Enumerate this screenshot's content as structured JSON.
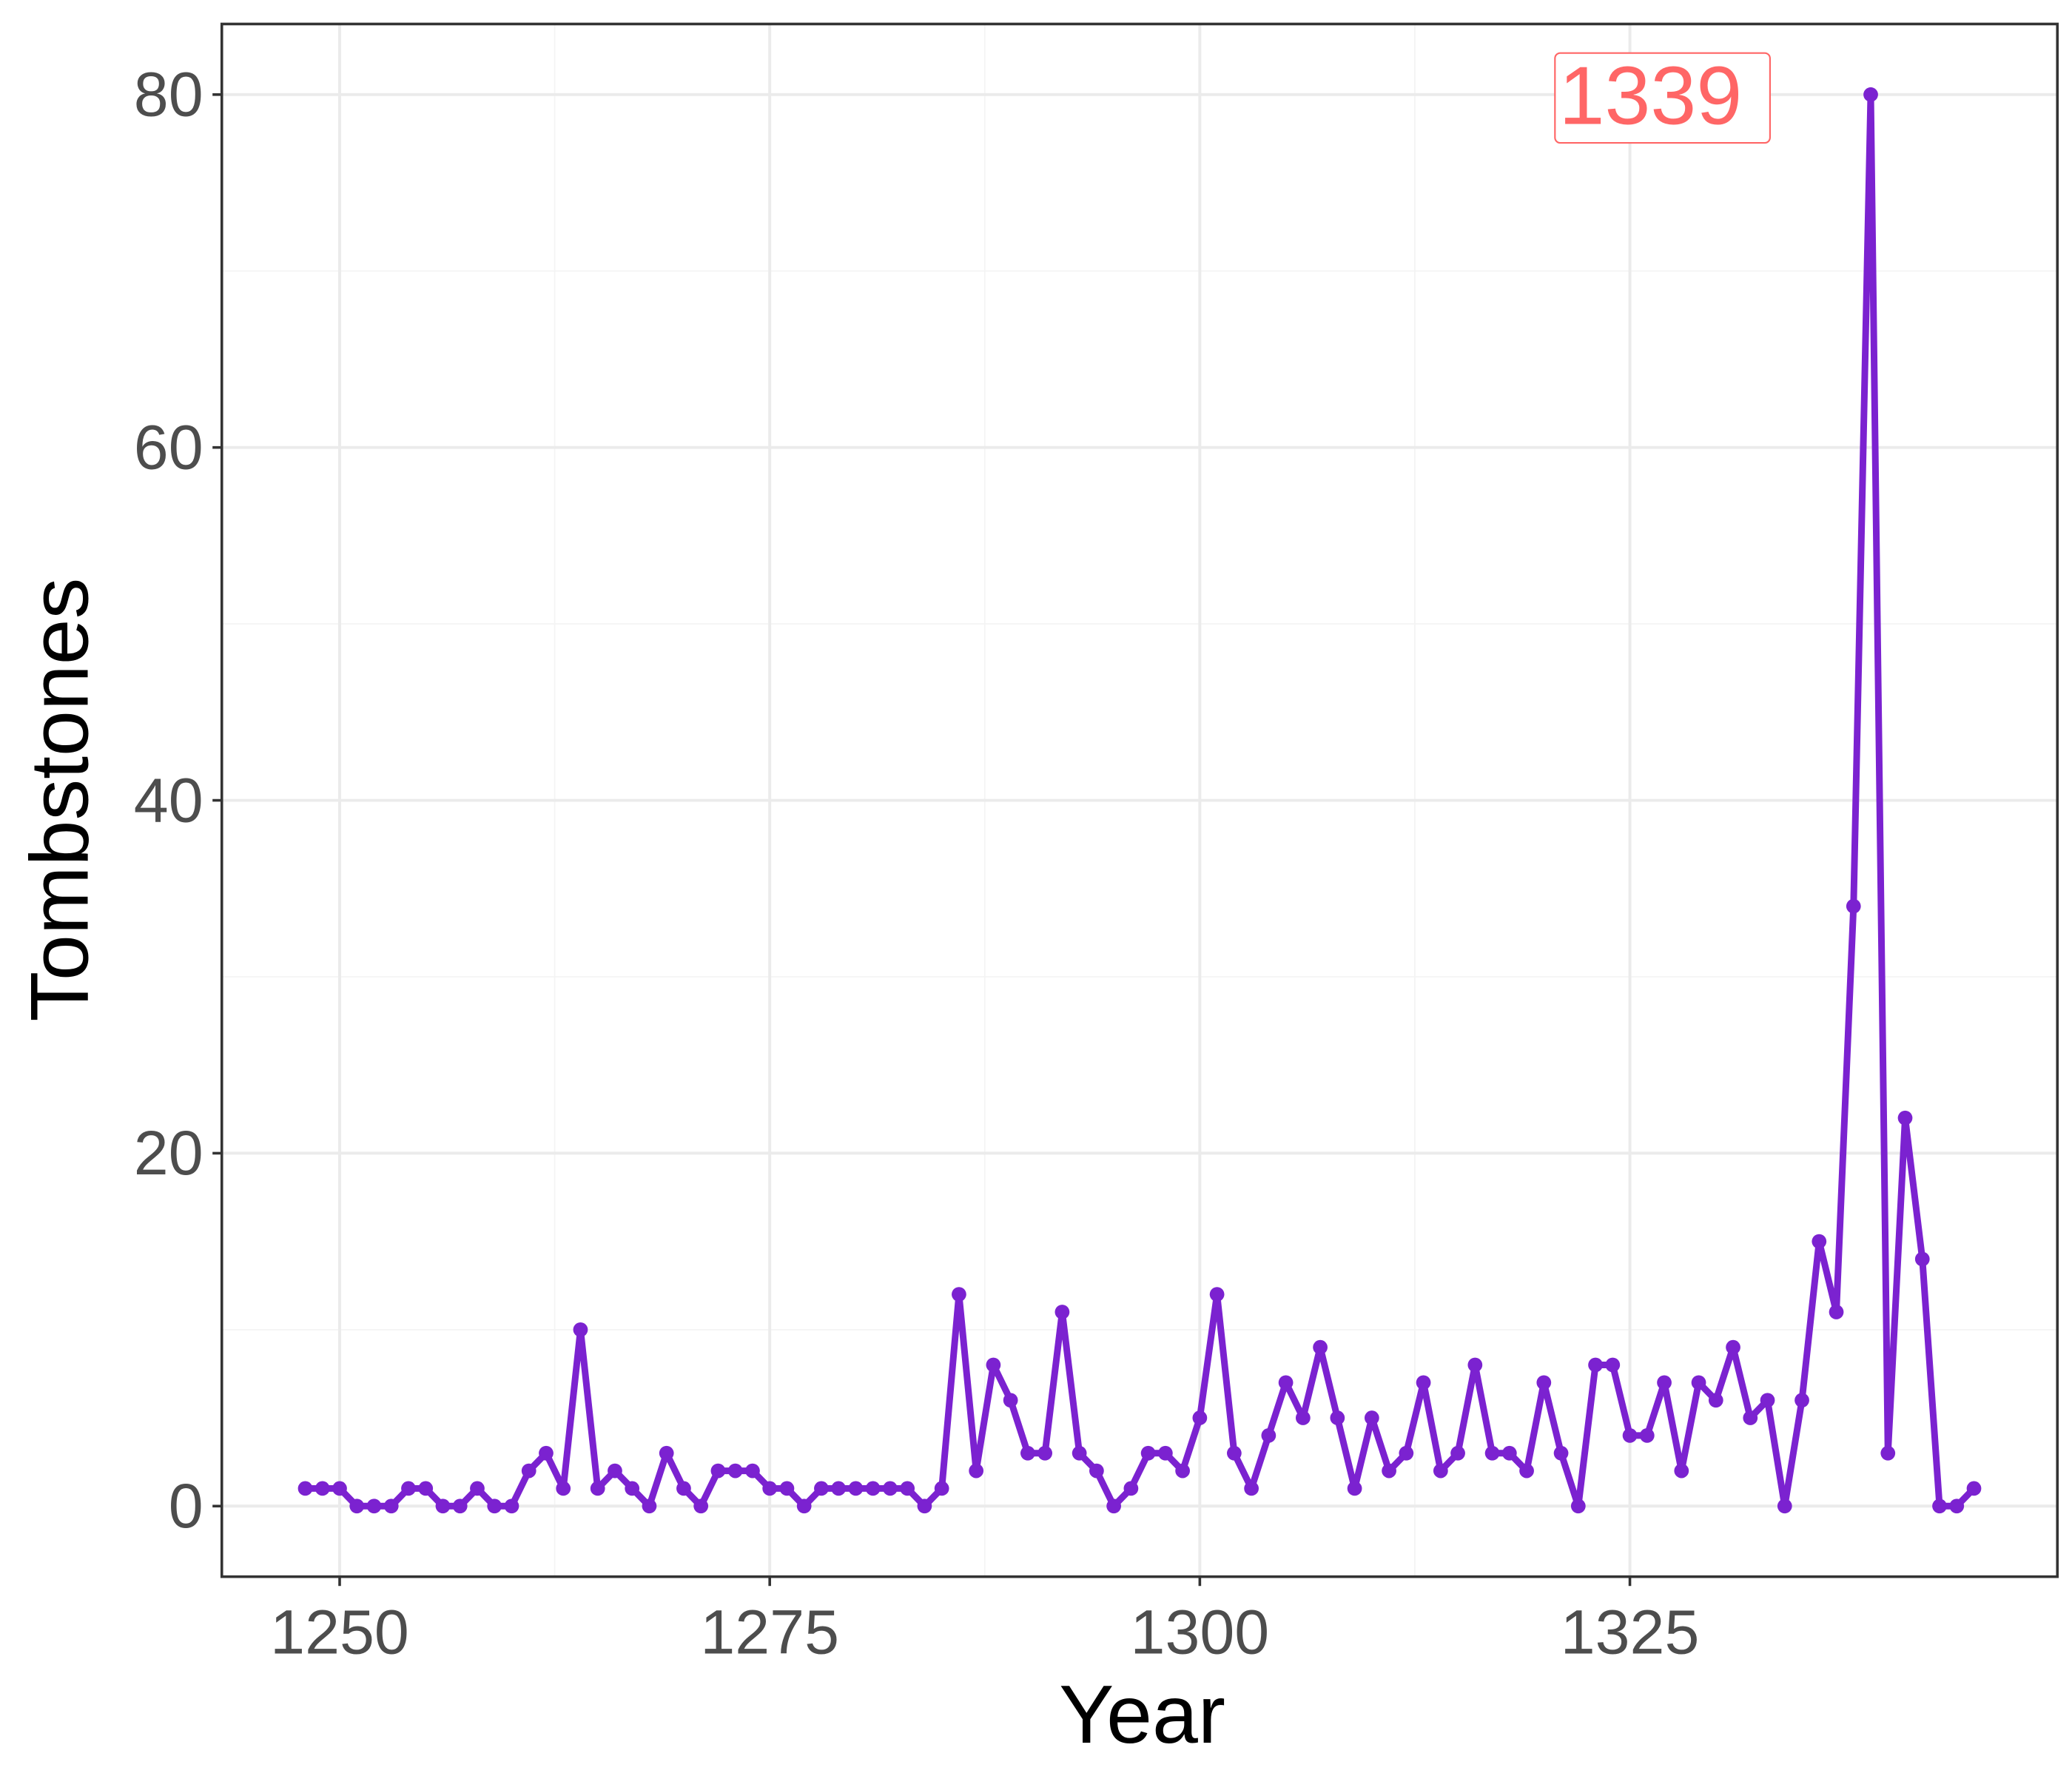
{
  "chart_data": {
    "type": "line",
    "x_label": "Year",
    "y_label": "Tombstones",
    "x": [
      1248,
      1249,
      1250,
      1251,
      1252,
      1253,
      1254,
      1255,
      1256,
      1257,
      1258,
      1259,
      1260,
      1261,
      1262,
      1263,
      1264,
      1265,
      1266,
      1267,
      1268,
      1269,
      1270,
      1271,
      1272,
      1273,
      1274,
      1275,
      1276,
      1277,
      1278,
      1279,
      1280,
      1281,
      1282,
      1283,
      1284,
      1285,
      1286,
      1287,
      1288,
      1289,
      1290,
      1291,
      1292,
      1293,
      1294,
      1295,
      1296,
      1297,
      1298,
      1299,
      1300,
      1301,
      1302,
      1303,
      1304,
      1305,
      1306,
      1307,
      1308,
      1309,
      1310,
      1311,
      1312,
      1313,
      1314,
      1315,
      1316,
      1317,
      1318,
      1319,
      1320,
      1321,
      1322,
      1323,
      1324,
      1325,
      1326,
      1327,
      1328,
      1329,
      1330,
      1331,
      1332,
      1333,
      1334,
      1335,
      1336,
      1337,
      1338,
      1339,
      1340,
      1341,
      1342,
      1343,
      1344,
      1345
    ],
    "series": [
      {
        "name": "Tombstones",
        "color": "#7b22d0",
        "values": [
          1,
          1,
          1,
          0,
          0,
          0,
          1,
          1,
          0,
          0,
          1,
          0,
          0,
          2,
          3,
          1,
          10,
          1,
          2,
          1,
          0,
          3,
          1,
          0,
          2,
          2,
          2,
          1,
          1,
          0,
          1,
          1,
          1,
          1,
          1,
          1,
          0,
          1,
          12,
          2,
          8,
          6,
          3,
          3,
          11,
          3,
          2,
          0,
          1,
          3,
          3,
          2,
          5,
          12,
          3,
          1,
          4,
          7,
          5,
          9,
          5,
          1,
          5,
          2,
          3,
          7,
          2,
          3,
          8,
          3,
          3,
          2,
          7,
          3,
          0,
          8,
          8,
          4,
          4,
          7,
          2,
          7,
          6,
          9,
          5,
          6,
          0,
          6,
          15,
          11,
          34,
          80,
          3,
          22,
          14,
          0,
          0,
          1
        ]
      }
    ],
    "xlim": [
      1243.15,
      1349.85
    ],
    "xticks": [
      1250,
      1275,
      1300,
      1325
    ],
    "ylim": [
      -4,
      84
    ],
    "yticks": [
      0,
      20,
      40,
      60,
      80
    ],
    "grid": true,
    "annotations": [
      {
        "text": "1339",
        "x": 1326.2,
        "y": 80,
        "color": "#ff6666"
      }
    ]
  }
}
